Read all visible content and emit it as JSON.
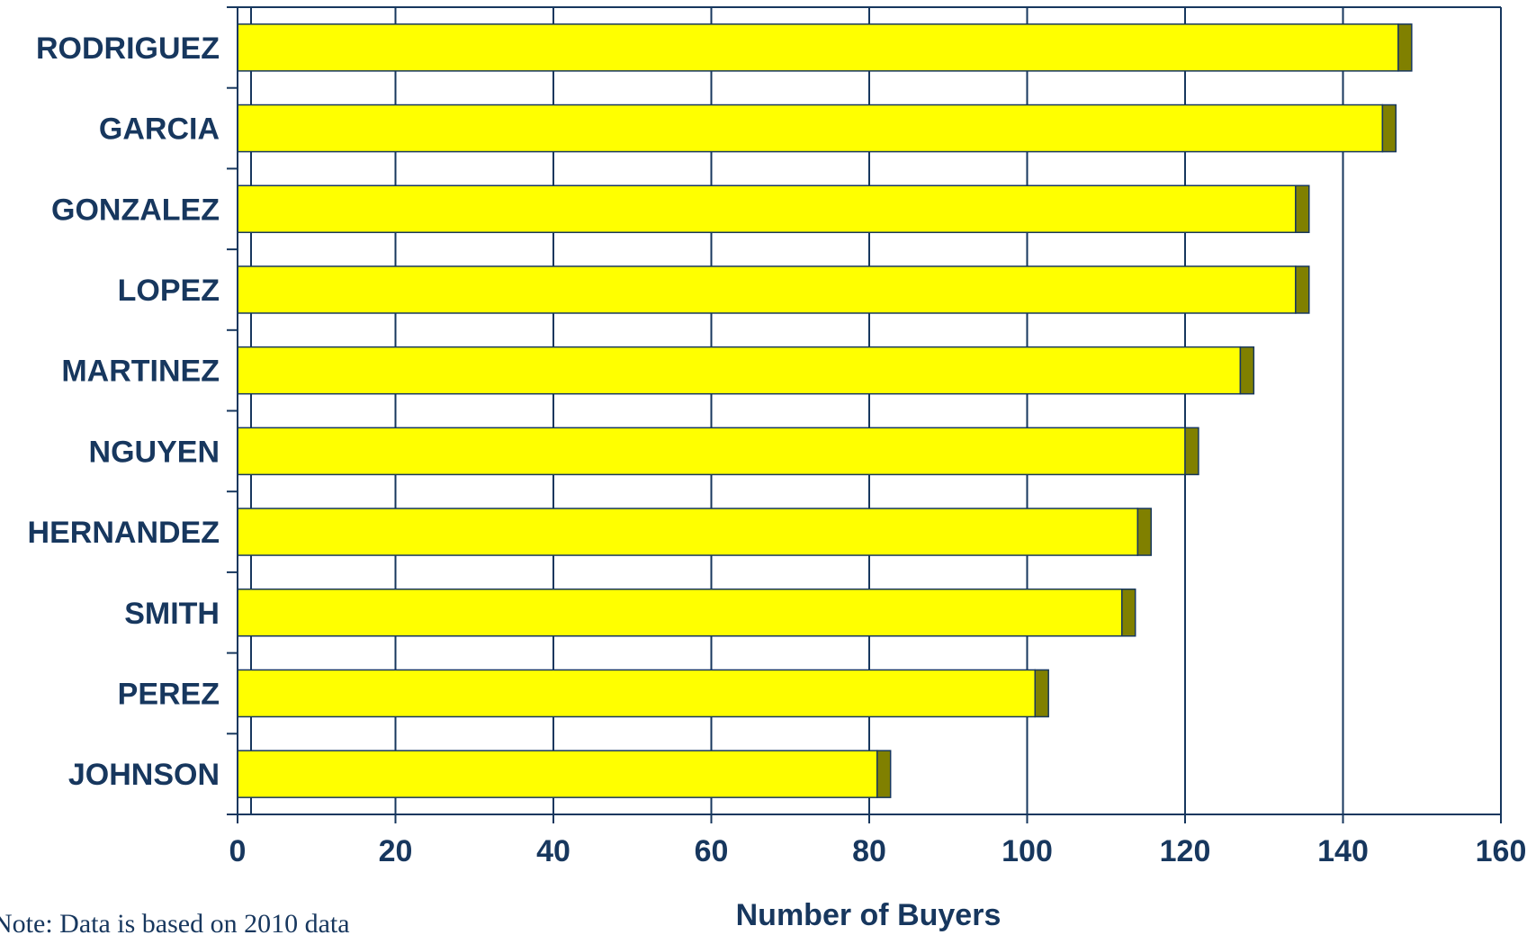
{
  "chart_data": {
    "type": "bar",
    "orientation": "horizontal",
    "stacked": true,
    "categories": [
      "RODRIGUEZ",
      "GARCIA",
      "GONZALEZ",
      "LOPEZ",
      "MARTINEZ",
      "NGUYEN",
      "HERNANDEZ",
      "SMITH",
      "PEREZ",
      "JOHNSON"
    ],
    "series": [
      {
        "values": [
          147,
          145,
          134,
          134,
          127,
          120,
          114,
          112,
          101,
          81
        ],
        "color": "#ffff00"
      },
      {
        "values": [
          1.7,
          1.7,
          1.7,
          1.7,
          1.7,
          1.7,
          1.7,
          1.7,
          1.7,
          1.7
        ],
        "color": "#808000"
      }
    ],
    "xlim": [
      0,
      160
    ],
    "xticks": [
      "0",
      "20",
      "40",
      "60",
      "80",
      "100",
      "120",
      "140",
      "160"
    ],
    "xlabel": "Number of Buyers",
    "grid": "vertical",
    "note": "Note:  Data is based on 2010 data"
  },
  "colors": {
    "text": "#17375e",
    "axis": "#17375e",
    "bar_primary": "#ffff00",
    "bar_cap": "#808000"
  }
}
